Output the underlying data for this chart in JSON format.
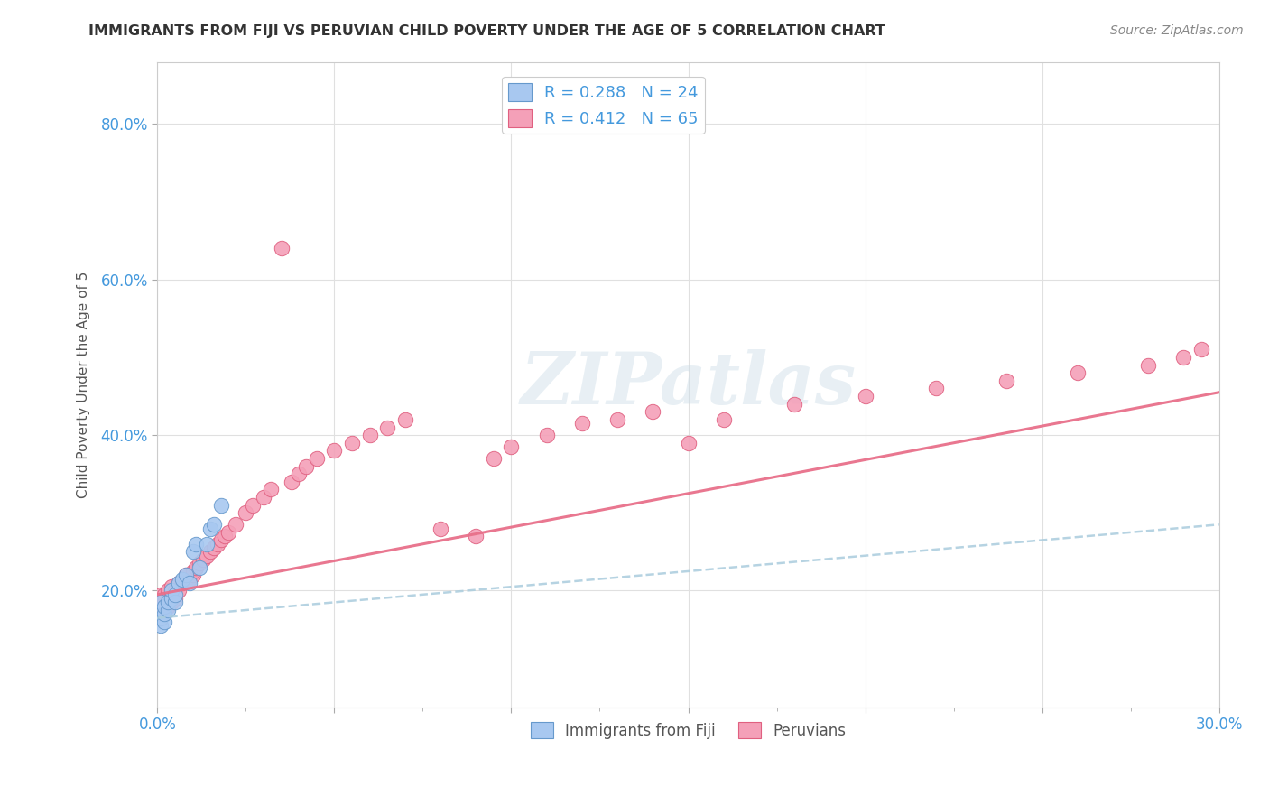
{
  "title": "IMMIGRANTS FROM FIJI VS PERUVIAN CHILD POVERTY UNDER THE AGE OF 5 CORRELATION CHART",
  "source": "Source: ZipAtlas.com",
  "ylabel": "Child Poverty Under the Age of 5",
  "xlim": [
    0.0,
    0.3
  ],
  "ylim": [
    0.05,
    0.88
  ],
  "x_tick_positions": [
    0.0,
    0.05,
    0.1,
    0.15,
    0.2,
    0.25,
    0.3
  ],
  "x_tick_labels": [
    "0.0%",
    "",
    "",
    "",
    "",
    "",
    "30.0%"
  ],
  "y_tick_positions": [
    0.2,
    0.4,
    0.6,
    0.8
  ],
  "y_tick_labels": [
    "20.0%",
    "40.0%",
    "60.0%",
    "80.0%"
  ],
  "fiji_color": "#a8c8f0",
  "fiji_edge": "#6699cc",
  "peru_color": "#f4a0b8",
  "peru_edge": "#e06080",
  "fiji_line_color": "#aaccee",
  "peru_line_color": "#e8708a",
  "R_fiji": 0.288,
  "N_fiji": 24,
  "R_peru": 0.412,
  "N_peru": 65,
  "legend_label_fiji": "Immigrants from Fiji",
  "legend_label_peru": "Peruvians",
  "watermark": "ZIPatlas",
  "background_color": "#ffffff",
  "grid_color": "#e0e0e0",
  "tick_color": "#4499dd",
  "fiji_x": [
    0.001,
    0.001,
    0.001,
    0.001,
    0.002,
    0.002,
    0.002,
    0.003,
    0.003,
    0.004,
    0.004,
    0.005,
    0.005,
    0.006,
    0.007,
    0.008,
    0.009,
    0.01,
    0.011,
    0.012,
    0.014,
    0.015,
    0.016,
    0.018
  ],
  "fiji_y": [
    0.155,
    0.165,
    0.175,
    0.185,
    0.16,
    0.17,
    0.18,
    0.175,
    0.185,
    0.19,
    0.2,
    0.185,
    0.195,
    0.21,
    0.215,
    0.22,
    0.21,
    0.25,
    0.26,
    0.23,
    0.26,
    0.28,
    0.285,
    0.31
  ],
  "peru_x": [
    0.001,
    0.001,
    0.001,
    0.002,
    0.002,
    0.002,
    0.003,
    0.003,
    0.003,
    0.004,
    0.004,
    0.004,
    0.005,
    0.005,
    0.006,
    0.006,
    0.007,
    0.008,
    0.008,
    0.009,
    0.01,
    0.01,
    0.011,
    0.012,
    0.013,
    0.014,
    0.015,
    0.016,
    0.017,
    0.018,
    0.019,
    0.02,
    0.022,
    0.025,
    0.027,
    0.03,
    0.032,
    0.035,
    0.038,
    0.04,
    0.042,
    0.045,
    0.05,
    0.055,
    0.06,
    0.065,
    0.07,
    0.08,
    0.09,
    0.095,
    0.1,
    0.11,
    0.12,
    0.13,
    0.14,
    0.15,
    0.16,
    0.18,
    0.2,
    0.22,
    0.24,
    0.26,
    0.28,
    0.29,
    0.295
  ],
  "peru_y": [
    0.175,
    0.185,
    0.195,
    0.175,
    0.185,
    0.195,
    0.18,
    0.19,
    0.2,
    0.185,
    0.195,
    0.205,
    0.19,
    0.2,
    0.2,
    0.21,
    0.21,
    0.215,
    0.22,
    0.215,
    0.22,
    0.225,
    0.23,
    0.235,
    0.24,
    0.245,
    0.25,
    0.255,
    0.26,
    0.265,
    0.27,
    0.275,
    0.285,
    0.3,
    0.31,
    0.32,
    0.33,
    0.64,
    0.34,
    0.35,
    0.36,
    0.37,
    0.38,
    0.39,
    0.4,
    0.41,
    0.42,
    0.28,
    0.27,
    0.37,
    0.385,
    0.4,
    0.415,
    0.42,
    0.43,
    0.39,
    0.42,
    0.44,
    0.45,
    0.46,
    0.47,
    0.48,
    0.49,
    0.5,
    0.51
  ],
  "fiji_trend_x": [
    0.0,
    0.3
  ],
  "fiji_trend_y": [
    0.165,
    0.285
  ],
  "peru_trend_x": [
    0.0,
    0.3
  ],
  "peru_trend_y": [
    0.195,
    0.455
  ]
}
